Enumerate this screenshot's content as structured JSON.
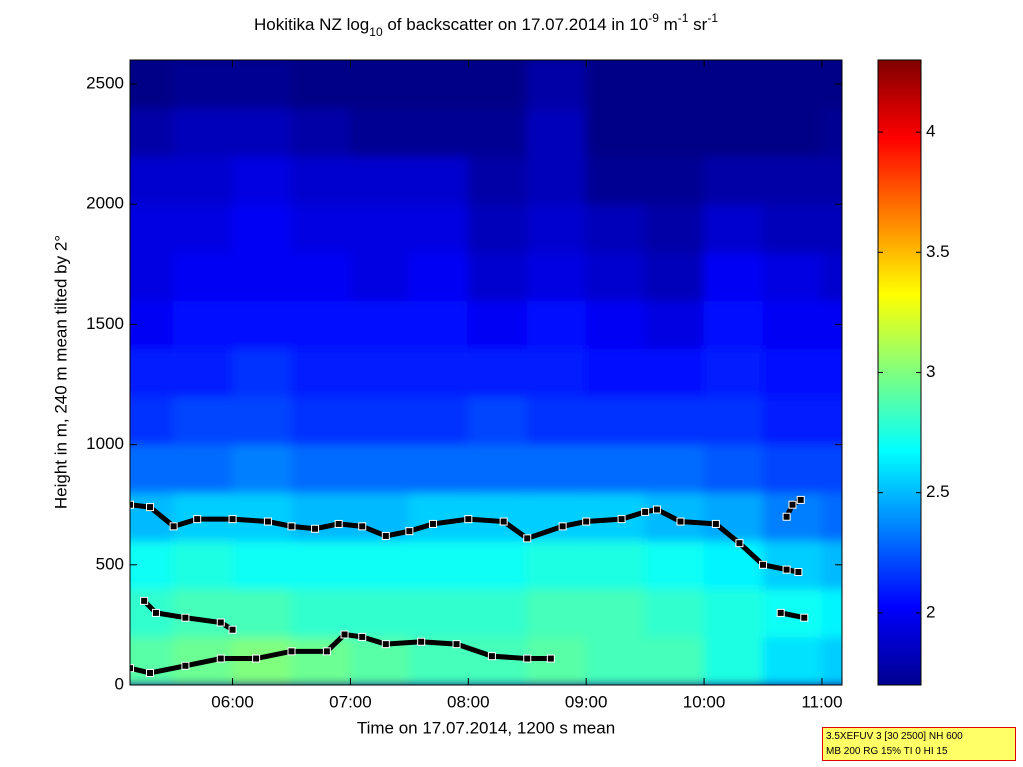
{
  "chart_data": {
    "type": "heatmap",
    "title": [
      "Hokitika NZ log",
      "10",
      " of backscatter on 17.07.2014 in 10",
      "-9",
      " m",
      "-1",
      " sr",
      "-1"
    ],
    "xlabel": "Time on 17.07.2014, 1200 s mean",
    "ylabel": "Height in m, 240 m mean tilted by 2°",
    "xlim": [
      5.13,
      11.17
    ],
    "xticks": [
      {
        "value": 6,
        "label": "06:00"
      },
      {
        "value": 7,
        "label": "07:00"
      },
      {
        "value": 8,
        "label": "08:00"
      },
      {
        "value": 9,
        "label": "09:00"
      },
      {
        "value": 10,
        "label": "10:00"
      },
      {
        "value": 11,
        "label": "11:00"
      }
    ],
    "ylim": [
      0,
      2600
    ],
    "yticks": [
      0,
      500,
      1000,
      1500,
      2000,
      2500
    ],
    "x": [
      5.25,
      5.75,
      6.25,
      6.75,
      7.25,
      7.75,
      8.25,
      8.75,
      9.25,
      9.75,
      10.25,
      10.75,
      11.25
    ],
    "y": [
      100,
      300,
      500,
      700,
      900,
      1100,
      1300,
      1500,
      1700,
      1900,
      2100,
      2300,
      2500
    ],
    "z": [
      [
        2.9,
        2.95,
        3.0,
        2.95,
        2.9,
        2.85,
        2.85,
        2.9,
        2.85,
        2.85,
        2.75,
        2.6,
        2.55
      ],
      [
        2.8,
        2.85,
        2.85,
        2.8,
        2.8,
        2.8,
        2.8,
        2.85,
        2.85,
        2.8,
        2.75,
        2.7,
        2.65
      ],
      [
        2.7,
        2.75,
        2.7,
        2.7,
        2.7,
        2.7,
        2.7,
        2.75,
        2.75,
        2.7,
        2.65,
        2.55,
        2.5
      ],
      [
        2.5,
        2.55,
        2.55,
        2.5,
        2.5,
        2.55,
        2.55,
        2.55,
        2.55,
        2.5,
        2.45,
        2.35,
        2.3
      ],
      [
        2.3,
        2.3,
        2.35,
        2.3,
        2.3,
        2.3,
        2.3,
        2.3,
        2.3,
        2.3,
        2.25,
        2.2,
        2.2
      ],
      [
        2.15,
        2.2,
        2.2,
        2.15,
        2.15,
        2.15,
        2.2,
        2.15,
        2.15,
        2.15,
        2.15,
        2.1,
        2.1
      ],
      [
        2.1,
        2.1,
        2.15,
        2.1,
        2.1,
        2.1,
        2.1,
        2.1,
        2.05,
        2.05,
        2.1,
        2.05,
        2.05
      ],
      [
        2.0,
        2.05,
        2.05,
        2.05,
        2.05,
        2.05,
        2.0,
        2.05,
        2.0,
        1.95,
        2.05,
        2.0,
        2.0
      ],
      [
        1.95,
        2.0,
        2.0,
        2.0,
        1.95,
        2.0,
        1.9,
        1.95,
        1.9,
        1.85,
        2.0,
        1.95,
        1.9
      ],
      [
        1.95,
        1.95,
        2.0,
        1.95,
        1.95,
        1.95,
        1.85,
        1.9,
        1.85,
        1.8,
        1.9,
        1.85,
        1.85
      ],
      [
        1.9,
        1.9,
        1.95,
        1.9,
        1.9,
        1.9,
        1.8,
        1.85,
        1.75,
        1.75,
        1.8,
        1.8,
        1.8
      ],
      [
        1.8,
        1.85,
        1.85,
        1.8,
        1.75,
        1.75,
        1.75,
        1.85,
        1.72,
        1.72,
        1.72,
        1.72,
        1.75
      ],
      [
        1.72,
        1.75,
        1.75,
        1.72,
        1.72,
        1.72,
        1.72,
        1.8,
        1.72,
        1.72,
        1.72,
        1.72,
        1.72
      ]
    ],
    "clim": [
      1.7,
      4.3
    ],
    "cticks": [
      2,
      2.5,
      3,
      3.5,
      4
    ],
    "layers": [
      {
        "color": "#000000",
        "x": [
          5.13,
          5.3,
          5.5,
          5.7,
          6.0,
          6.3,
          6.5,
          6.7,
          6.9,
          7.1,
          7.3,
          7.5,
          7.7,
          8.0,
          8.3,
          8.5,
          8.8,
          9.0,
          9.3,
          9.5,
          9.6,
          9.8,
          10.1,
          10.3,
          10.5,
          10.7,
          10.8,
          null,
          10.7,
          10.75,
          10.82
        ],
        "values": [
          750,
          740,
          660,
          690,
          690,
          680,
          660,
          650,
          670,
          660,
          620,
          640,
          670,
          690,
          680,
          610,
          660,
          680,
          690,
          720,
          730,
          680,
          670,
          590,
          500,
          480,
          470,
          null,
          700,
          750,
          770
        ]
      },
      {
        "color": "#000000",
        "x": [
          5.25,
          5.35,
          5.6,
          5.9,
          6.0,
          null,
          10.65,
          10.85
        ],
        "values": [
          350,
          300,
          280,
          260,
          230,
          null,
          300,
          280
        ]
      },
      {
        "color": "#000000",
        "x": [
          5.13,
          5.3,
          5.6,
          5.9,
          6.2,
          6.5,
          6.8,
          6.95,
          7.1,
          7.3,
          7.6,
          7.9,
          8.2,
          8.5,
          8.7
        ],
        "values": [
          70,
          50,
          80,
          110,
          110,
          140,
          140,
          210,
          200,
          170,
          180,
          170,
          120,
          110,
          110
        ]
      }
    ]
  },
  "info_box": [
    "3.5XEFUV 3 [30 2500] NH 600",
    "MB 200 RG 15% TI 0 HI 15"
  ]
}
